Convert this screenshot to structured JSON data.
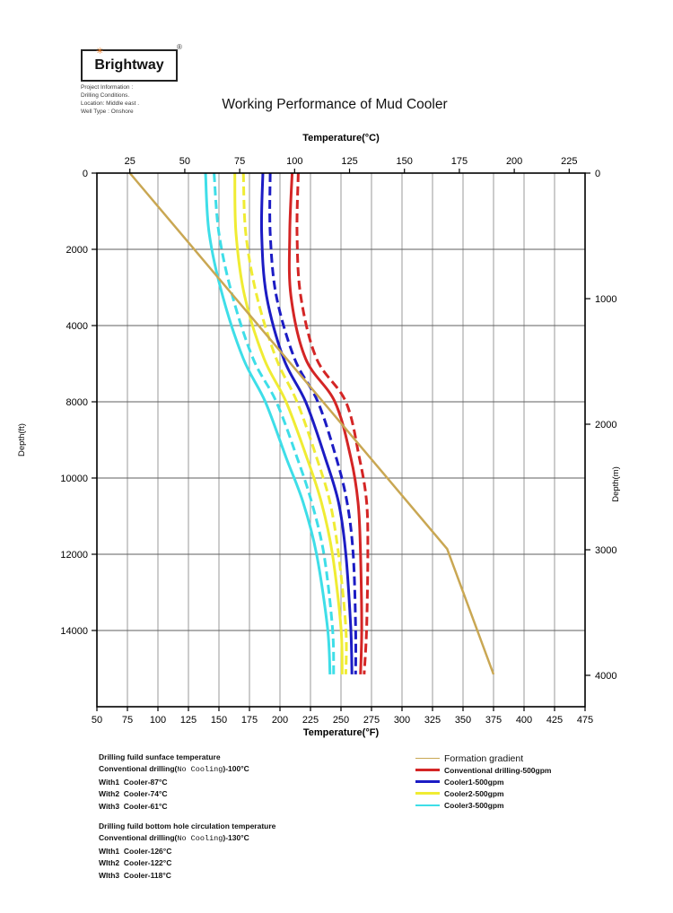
{
  "logo": {
    "brand": "Brightway",
    "reg": "®",
    "star": "✳",
    "star_color": "#E8731A"
  },
  "project_info": {
    "lines": [
      "Project Information :",
      "Drilling Conditions.",
      "Location: Middle east .",
      "Well Type : Onshore"
    ]
  },
  "title": "Working Performance of Mud Cooler",
  "chart_data": {
    "type": "line",
    "title": "Working Performance of Mud Cooler",
    "grid": {
      "on": true,
      "v_color": "#9a9a9a",
      "h_color": "#5f5f5f",
      "border_color": "#000000"
    },
    "top_axis": {
      "label": "Temperature(°C)",
      "ticks": [
        25,
        50,
        75,
        100,
        125,
        150,
        175,
        200,
        225
      ]
    },
    "bottom_axis": {
      "label": "Temperature(°F)",
      "tick_labels": [
        "50",
        "75",
        "100",
        "125",
        "150",
        "175",
        "200",
        "225",
        "250",
        "275",
        "300",
        "325",
        "350",
        "375",
        "400",
        "425",
        "475"
      ]
    },
    "left_axis": {
      "label": "Depth(ft)",
      "tick_labels": [
        "0",
        "2000",
        "4000",
        "8000",
        "10000",
        "12000",
        "14000"
      ]
    },
    "right_axis": {
      "label": "Depth(m)",
      "tick_labels": [
        "0",
        "1000",
        "2000",
        "3000",
        "4000"
      ]
    },
    "f_range": [
      50,
      450
    ],
    "depth_grid_values": [
      0,
      2000,
      4000,
      8000,
      10000,
      12000,
      14000,
      16000
    ],
    "legend_position": "bottom-right",
    "series": [
      {
        "name": "Cooler3-500gpm",
        "color": "#3EDEE8",
        "dash": null,
        "width": 3,
        "smooth": true,
        "points": [
          [
            139,
            0
          ],
          [
            142,
            1580
          ],
          [
            153,
            3220
          ],
          [
            170,
            5740
          ],
          [
            188,
            8000
          ],
          [
            205,
            9460
          ],
          [
            219,
            10640
          ],
          [
            230,
            12000
          ],
          [
            239,
            13930
          ],
          [
            241,
            15150
          ]
        ]
      },
      {
        "name": "Cooler3-500gpm (annulus, dashed)",
        "color": "#3EDEE8",
        "dash": "10 5",
        "width": 3,
        "smooth": true,
        "points": [
          [
            146,
            0
          ],
          [
            150,
            1580
          ],
          [
            161,
            3220
          ],
          [
            178,
            5740
          ],
          [
            197,
            8000
          ],
          [
            214,
            9460
          ],
          [
            226,
            10640
          ],
          [
            236,
            12000
          ],
          [
            243,
            13930
          ],
          [
            244,
            15150
          ]
        ]
      },
      {
        "name": "Cooler2-500gpm",
        "color": "#F0EC33",
        "dash": null,
        "width": 3,
        "smooth": true,
        "points": [
          [
            163,
            0
          ],
          [
            164,
            1580
          ],
          [
            171,
            3220
          ],
          [
            187,
            5740
          ],
          [
            205,
            8000
          ],
          [
            222,
            9460
          ],
          [
            234,
            10640
          ],
          [
            243,
            12000
          ],
          [
            250,
            13930
          ],
          [
            251,
            15150
          ]
        ]
      },
      {
        "name": "Cooler2-500gpm (annulus, dashed)",
        "color": "#F0EC33",
        "dash": "10 5",
        "width": 3,
        "smooth": true,
        "points": [
          [
            170,
            0
          ],
          [
            172,
            1580
          ],
          [
            181,
            3220
          ],
          [
            197,
            5740
          ],
          [
            214,
            8000
          ],
          [
            230,
            9460
          ],
          [
            241,
            10640
          ],
          [
            248,
            12000
          ],
          [
            254,
            13930
          ],
          [
            254,
            15150
          ]
        ]
      },
      {
        "name": "Cooler1-500gpm",
        "color": "#1C1CC4",
        "dash": null,
        "width": 3,
        "smooth": true,
        "points": [
          [
            186,
            0
          ],
          [
            185,
            1580
          ],
          [
            189,
            3220
          ],
          [
            203,
            5740
          ],
          [
            221,
            8000
          ],
          [
            237,
            9460
          ],
          [
            248,
            10640
          ],
          [
            254,
            12000
          ],
          [
            258,
            13930
          ],
          [
            259,
            15150
          ]
        ]
      },
      {
        "name": "Cooler1-500gpm (annulus, dashed)",
        "color": "#1C1CC4",
        "dash": "10 5",
        "width": 3,
        "smooth": true,
        "points": [
          [
            192,
            0
          ],
          [
            192,
            1580
          ],
          [
            197,
            3220
          ],
          [
            212,
            5740
          ],
          [
            231,
            8000
          ],
          [
            246,
            9460
          ],
          [
            255,
            10640
          ],
          [
            260,
            12000
          ],
          [
            262,
            13930
          ],
          [
            262,
            15150
          ]
        ]
      },
      {
        "name": "Conventional drilling-500gpm",
        "color": "#D42525",
        "dash": null,
        "width": 3,
        "smooth": true,
        "points": [
          [
            210,
            0
          ],
          [
            208,
            1580
          ],
          [
            209,
            3220
          ],
          [
            221,
            5740
          ],
          [
            245,
            8000
          ],
          [
            258,
            9460
          ],
          [
            264,
            10640
          ],
          [
            266,
            12000
          ],
          [
            267,
            13930
          ],
          [
            266,
            15150
          ]
        ]
      },
      {
        "name": "Conventional drilling-500gpm (annulus, dashed)",
        "color": "#D42525",
        "dash": "10 5",
        "width": 3,
        "smooth": true,
        "points": [
          [
            215,
            0
          ],
          [
            214,
            1580
          ],
          [
            217,
            3220
          ],
          [
            230,
            5740
          ],
          [
            254,
            8000
          ],
          [
            265,
            9460
          ],
          [
            271,
            10640
          ],
          [
            272,
            12000
          ],
          [
            271,
            13930
          ],
          [
            269,
            15150
          ]
        ]
      },
      {
        "name": "Formation gradient",
        "color": "#C9A753",
        "dash": null,
        "width": 2.5,
        "smooth": false,
        "points": [
          [
            77,
            0
          ],
          [
            337,
            11860
          ],
          [
            375,
            15150
          ]
        ]
      }
    ],
    "legend": [
      {
        "label": "Formation gradient",
        "color": "#C9A753",
        "thickness": 1.5,
        "large": true
      },
      {
        "label": "Conventional drilling-500gpm",
        "color": "#D42525",
        "thickness": 2.5,
        "large": false
      },
      {
        "label": "Cooler1-500gpm",
        "color": "#1C1CC4",
        "thickness": 2.5,
        "large": false
      },
      {
        "label": "Cooler2-500gpm",
        "color": "#F0EC33",
        "thickness": 2.5,
        "large": false
      },
      {
        "label": "Cooler3-500gpm",
        "color": "#3EDEE8",
        "thickness": 2.0,
        "large": false
      }
    ]
  },
  "annotations": {
    "surface": {
      "title": "Drilling fuild sunface temperature",
      "conv_pre": "Conventional drilling(",
      "conv_mono": "No Cooling",
      "conv_post": ")-100°C",
      "items": [
        "With1  Cooler-87°C",
        "With2  Cooler-74°C",
        "With3  Cooler-61°C"
      ]
    },
    "bottomhole": {
      "title": "Drilling fuild bottom hole circulation temperature",
      "conv_pre": "Conventional drilling(",
      "conv_mono": "No Cooling",
      "conv_post": ")-130°C",
      "items": [
        "WIth1  Cooler-126°C",
        "WIth2  Cooler-122°C",
        "WIth3  Cooler-118°C"
      ]
    }
  }
}
